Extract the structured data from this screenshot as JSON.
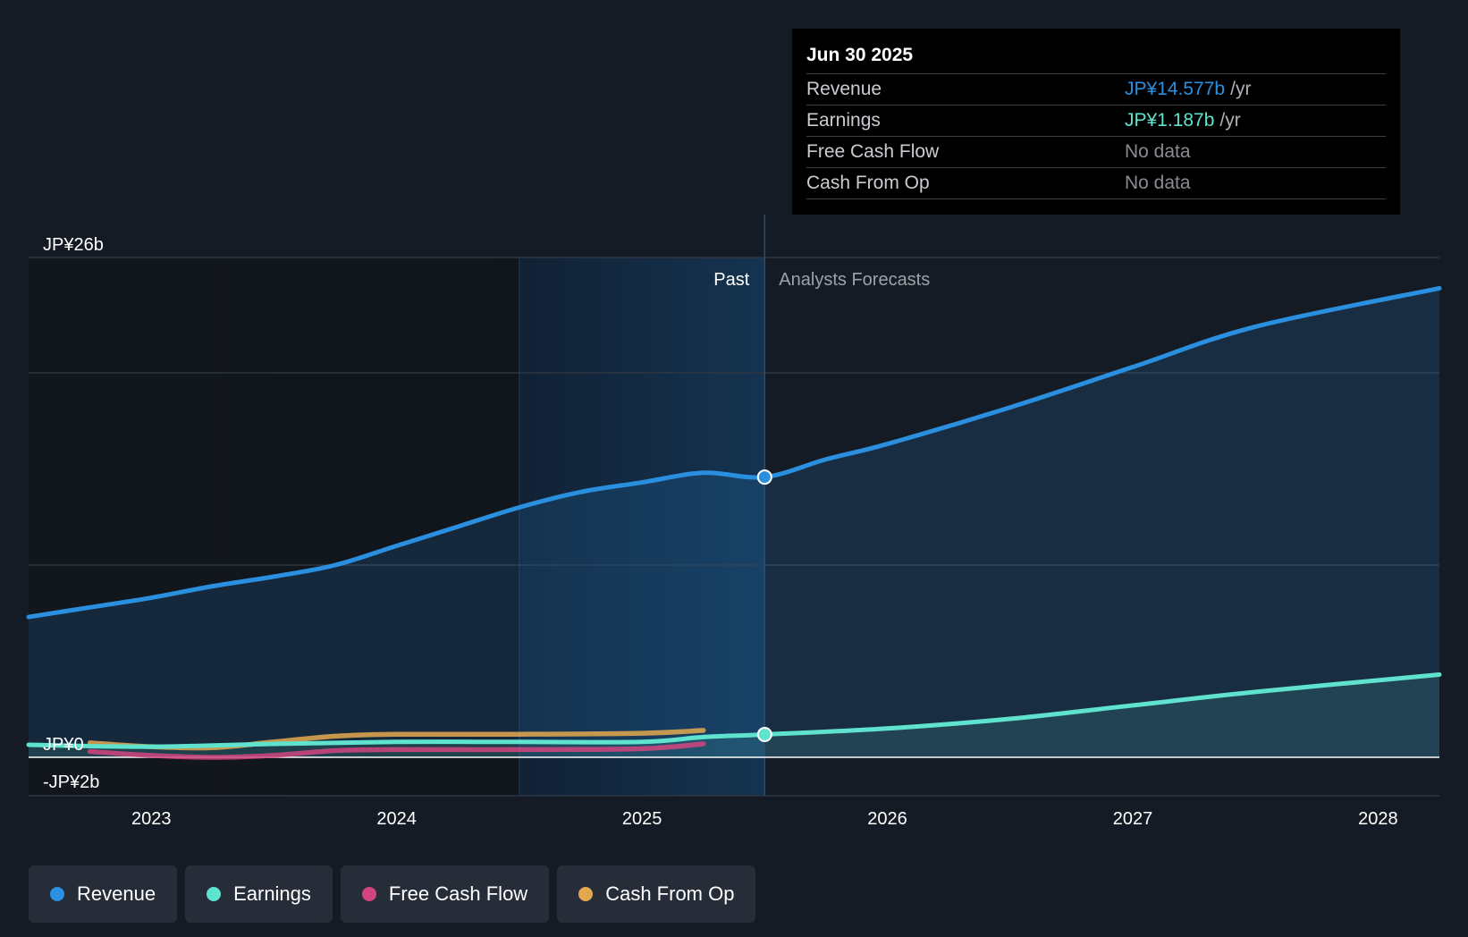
{
  "colors": {
    "revenue": "#2b8fe0",
    "earnings": "#5fe3cf",
    "free_cash_flow": "#d2457f",
    "cash_from_op": "#e4a94f"
  },
  "tooltip": {
    "date": "Jun 30 2025",
    "rows": [
      {
        "label": "Revenue",
        "value": "JP¥14.577b",
        "unit": "/yr"
      },
      {
        "label": "Earnings",
        "value": "JP¥1.187b",
        "unit": "/yr"
      },
      {
        "label": "Free Cash Flow",
        "value": "No data",
        "unit": ""
      },
      {
        "label": "Cash From Op",
        "value": "No data",
        "unit": ""
      }
    ]
  },
  "legend": [
    {
      "label": "Revenue",
      "color_key": "revenue"
    },
    {
      "label": "Earnings",
      "color_key": "earnings"
    },
    {
      "label": "Free Cash Flow",
      "color_key": "free_cash_flow"
    },
    {
      "label": "Cash From Op",
      "color_key": "cash_from_op"
    }
  ],
  "chart_data": {
    "type": "line",
    "title": "",
    "xlabel": "",
    "ylabel": "",
    "x_ticks": [
      2023,
      2024,
      2025,
      2026,
      2027,
      2028
    ],
    "x_tick_labels": [
      "2023",
      "2024",
      "2025",
      "2026",
      "2027",
      "2028"
    ],
    "xlim": [
      2022.5,
      2028.25
    ],
    "y_tick_labels": [
      {
        "value": 26,
        "label": "JP¥26b"
      },
      {
        "value": 0,
        "label": "JP¥0"
      },
      {
        "value": -2,
        "label": "-JP¥2b"
      }
    ],
    "ylim": [
      -2,
      26
    ],
    "gridlines_y": [
      26,
      20,
      10
    ],
    "past_label": "Past",
    "forecast_label": "Analysts Forecasts",
    "divider_x": 2025.5,
    "highlight_start_x": 2024.5,
    "series": [
      {
        "name": "Revenue",
        "color_key": "revenue",
        "area": true,
        "points": [
          [
            2022.5,
            7.3
          ],
          [
            2022.75,
            7.8
          ],
          [
            2023.0,
            8.3
          ],
          [
            2023.25,
            8.9
          ],
          [
            2023.5,
            9.4
          ],
          [
            2023.75,
            10.0
          ],
          [
            2024.0,
            11.0
          ],
          [
            2024.25,
            12.0
          ],
          [
            2024.5,
            13.0
          ],
          [
            2024.75,
            13.8
          ],
          [
            2025.0,
            14.3
          ],
          [
            2025.25,
            14.8
          ],
          [
            2025.5,
            14.577
          ],
          [
            2025.75,
            15.5
          ],
          [
            2026.0,
            16.3
          ],
          [
            2026.5,
            18.2
          ],
          [
            2027.0,
            20.3
          ],
          [
            2027.5,
            22.4
          ],
          [
            2028.25,
            24.4
          ]
        ]
      },
      {
        "name": "Earnings",
        "color_key": "earnings",
        "area": true,
        "points": [
          [
            2022.5,
            0.65
          ],
          [
            2023.0,
            0.55
          ],
          [
            2023.5,
            0.7
          ],
          [
            2024.0,
            0.8
          ],
          [
            2024.5,
            0.8
          ],
          [
            2025.0,
            0.8
          ],
          [
            2025.25,
            1.05
          ],
          [
            2025.5,
            1.187
          ],
          [
            2026.0,
            1.5
          ],
          [
            2026.5,
            2.0
          ],
          [
            2027.0,
            2.7
          ],
          [
            2027.5,
            3.4
          ],
          [
            2028.25,
            4.3
          ]
        ]
      },
      {
        "name": "Free Cash Flow",
        "color_key": "free_cash_flow",
        "area": false,
        "points": [
          [
            2022.75,
            0.3
          ],
          [
            2023.0,
            0.1
          ],
          [
            2023.25,
            0.0
          ],
          [
            2023.5,
            0.1
          ],
          [
            2023.75,
            0.35
          ],
          [
            2024.0,
            0.4
          ],
          [
            2024.5,
            0.4
          ],
          [
            2025.0,
            0.45
          ],
          [
            2025.25,
            0.7
          ]
        ]
      },
      {
        "name": "Cash From Op",
        "color_key": "cash_from_op",
        "area": false,
        "points": [
          [
            2022.75,
            0.75
          ],
          [
            2023.0,
            0.55
          ],
          [
            2023.25,
            0.5
          ],
          [
            2023.5,
            0.8
          ],
          [
            2023.75,
            1.1
          ],
          [
            2024.0,
            1.2
          ],
          [
            2024.5,
            1.2
          ],
          [
            2025.0,
            1.25
          ],
          [
            2025.25,
            1.4
          ]
        ]
      }
    ],
    "markers": [
      {
        "series": "Revenue",
        "x": 2025.5,
        "y": 14.577
      },
      {
        "series": "Earnings",
        "x": 2025.5,
        "y": 1.187
      }
    ]
  }
}
